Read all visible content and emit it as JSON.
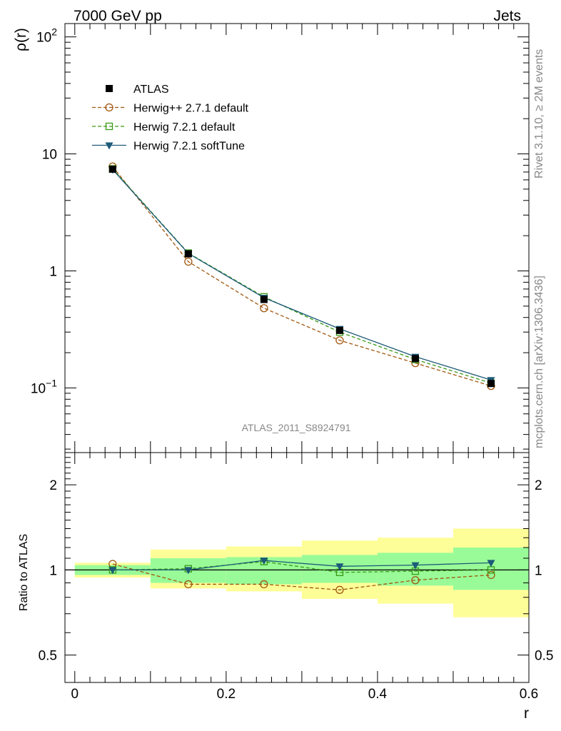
{
  "header": {
    "left": "7000 GeV pp",
    "right": "Jets"
  },
  "side_labels": {
    "rivet": "Rivet 3.1.10, ≥ 2M events",
    "mcplots": "mcplots.cern.ch [arXiv:1306.3436]"
  },
  "analysis_label": "ATLAS_2011_S8924791",
  "colors": {
    "atlas": "#000000",
    "herwigpp": "#a0570e",
    "herwig72default": "#3a9a16",
    "herwig72soft": "#1d5a78",
    "band_inner": "#99fb98",
    "band_outer": "#fefe98"
  },
  "chart_data": [
    {
      "type": "line",
      "panel": "main",
      "ylabel": "ρ(r)",
      "yscale": "log",
      "ylim": [
        0.028,
        130
      ],
      "xlim": [
        -0.013,
        0.6
      ],
      "y_ticks": [
        {
          "value": 100,
          "base": "10",
          "exp": "2"
        },
        {
          "value": 10,
          "label": "10"
        },
        {
          "value": 1,
          "label": "1"
        },
        {
          "value": 0.1,
          "base": "10",
          "exp": "−1"
        }
      ],
      "x": [
        0.05,
        0.15,
        0.25,
        0.35,
        0.45,
        0.55
      ],
      "bin_edges": [
        0.0,
        0.1,
        0.2,
        0.3,
        0.4,
        0.5,
        0.6
      ],
      "legend_position": "top-left",
      "series": [
        {
          "name": "ATLAS",
          "key": "atlas",
          "marker": "square-filled",
          "line": "none",
          "values": [
            7.4,
            1.4,
            0.57,
            0.31,
            0.178,
            0.109
          ]
        },
        {
          "name": "Herwig++ 2.7.1 default",
          "key": "herwigpp",
          "marker": "circle-open",
          "line": "dashed",
          "values": [
            7.8,
            1.2,
            0.48,
            0.255,
            0.163,
            0.104
          ]
        },
        {
          "name": "Herwig 7.2.1 default",
          "key": "herwig72default",
          "marker": "square-open",
          "line": "dashed",
          "values": [
            7.45,
            1.42,
            0.6,
            0.3,
            0.175,
            0.11
          ]
        },
        {
          "name": "Herwig 7.2.1 softTune",
          "key": "herwig72soft",
          "marker": "triangle-down-filled",
          "line": "solid",
          "values": [
            7.35,
            1.41,
            0.59,
            0.32,
            0.185,
            0.117
          ]
        }
      ]
    },
    {
      "type": "line",
      "panel": "ratio",
      "ylabel": "Ratio to ATLAS",
      "xlabel": "r",
      "yscale": "log",
      "ylim": [
        0.4,
        2.6
      ],
      "xlim": [
        -0.013,
        0.6
      ],
      "x_ticks": [
        {
          "value": 0,
          "label": "0"
        },
        {
          "value": 0.2,
          "label": "0.2"
        },
        {
          "value": 0.4,
          "label": "0.4"
        },
        {
          "value": 0.6,
          "label": "0.6"
        }
      ],
      "y_ticks": [
        {
          "value": 2,
          "label": "2"
        },
        {
          "value": 1,
          "label": "1"
        },
        {
          "value": 0.5,
          "label": "0.5"
        }
      ],
      "x": [
        0.05,
        0.15,
        0.25,
        0.35,
        0.45,
        0.55
      ],
      "bin_edges": [
        0.0,
        0.1,
        0.2,
        0.3,
        0.4,
        0.5,
        0.6
      ],
      "band_inner": {
        "low": [
          0.96,
          0.9,
          0.89,
          0.9,
          0.88,
          0.85
        ],
        "high": [
          1.04,
          1.1,
          1.11,
          1.13,
          1.15,
          1.2
        ]
      },
      "band_outer": {
        "low": [
          0.94,
          0.86,
          0.84,
          0.79,
          0.76,
          0.68
        ],
        "high": [
          1.06,
          1.18,
          1.21,
          1.27,
          1.3,
          1.4
        ]
      },
      "series": [
        {
          "name": "Herwig++ 2.7.1 default",
          "key": "herwigpp",
          "marker": "circle-open",
          "line": "dashed",
          "values": [
            1.05,
            0.89,
            0.89,
            0.85,
            0.92,
            0.96
          ]
        },
        {
          "name": "Herwig 7.2.1 default",
          "key": "herwig72default",
          "marker": "square-open",
          "line": "dashed",
          "values": [
            1.0,
            1.01,
            1.07,
            0.98,
            0.99,
            1.0
          ]
        },
        {
          "name": "Herwig 7.2.1 softTune",
          "key": "herwig72soft",
          "marker": "triangle-down-filled",
          "line": "solid",
          "values": [
            1.0,
            1.0,
            1.08,
            1.03,
            1.04,
            1.06
          ]
        }
      ]
    }
  ]
}
